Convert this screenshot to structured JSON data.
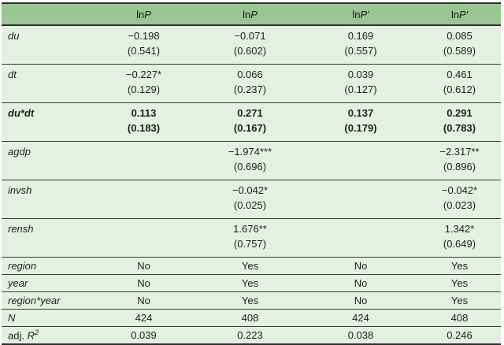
{
  "colors": {
    "header_bg": "#9ac694",
    "row_bg": "#e4f1e0",
    "rule": "#2e2e2e",
    "text": "#1e1e1e"
  },
  "table": {
    "header": {
      "corner": "",
      "columns": [
        {
          "prefix": "ln",
          "symbol": "P",
          "prime": ""
        },
        {
          "prefix": "ln",
          "symbol": "P",
          "prime": ""
        },
        {
          "prefix": "ln",
          "symbol": "P",
          "prime": "′"
        },
        {
          "prefix": "ln",
          "symbol": "P",
          "prime": "′"
        }
      ]
    },
    "coef_rows": [
      {
        "label": "du",
        "cells": [
          {
            "est": "−0.198",
            "se": "(0.541)"
          },
          {
            "est": "−0.071",
            "se": "(0.602)"
          },
          {
            "est": "0.169",
            "se": "(0.557)"
          },
          {
            "est": "0.085",
            "se": "(0.589)"
          }
        ]
      },
      {
        "label": "dt",
        "cells": [
          {
            "est": "−0.227*",
            "se": "(0.129)"
          },
          {
            "est": "0.066",
            "se": "(0.237)"
          },
          {
            "est": "0.039",
            "se": "(0.127)"
          },
          {
            "est": "0.461",
            "se": "(0.612)"
          }
        ]
      },
      {
        "label": "du*dt",
        "cells": [
          {
            "est": "0.113",
            "se": "(0.183)"
          },
          {
            "est": "0.271",
            "se": "(0.167)"
          },
          {
            "est": "0.137",
            "se": "(0.179)"
          },
          {
            "est": "0.291",
            "se": "(0.783)"
          }
        ]
      },
      {
        "label": "agdp",
        "cells": [
          null,
          {
            "est": "−1.974***",
            "se": "(0.696)"
          },
          null,
          {
            "est": "−2.317**",
            "se": "(0.896)"
          }
        ]
      },
      {
        "label": "invsh",
        "cells": [
          null,
          {
            "est": "−0.042*",
            "se": "(0.025)"
          },
          null,
          {
            "est": "−0.042*",
            "se": "(0.023)"
          }
        ]
      },
      {
        "label": "rensh",
        "cells": [
          null,
          {
            "est": "1.676**",
            "se": "(0.757)"
          },
          null,
          {
            "est": "1.342*",
            "se": "(0.649)"
          }
        ]
      }
    ],
    "meta_rows": [
      {
        "label": "region",
        "values": [
          "No",
          "Yes",
          "No",
          "Yes"
        ]
      },
      {
        "label": "year",
        "values": [
          "No",
          "Yes",
          "No",
          "Yes"
        ]
      },
      {
        "label": "region*year",
        "values": [
          "No",
          "Yes",
          "No",
          "Yes"
        ]
      },
      {
        "label": "N",
        "values": [
          "424",
          "408",
          "424",
          "408"
        ]
      }
    ],
    "adj_r2_row": {
      "label_pre": "adj. ",
      "label_symbol": "R",
      "label_sup": "2",
      "values": [
        "0.039",
        "0.223",
        "0.038",
        "0.246"
      ]
    }
  }
}
